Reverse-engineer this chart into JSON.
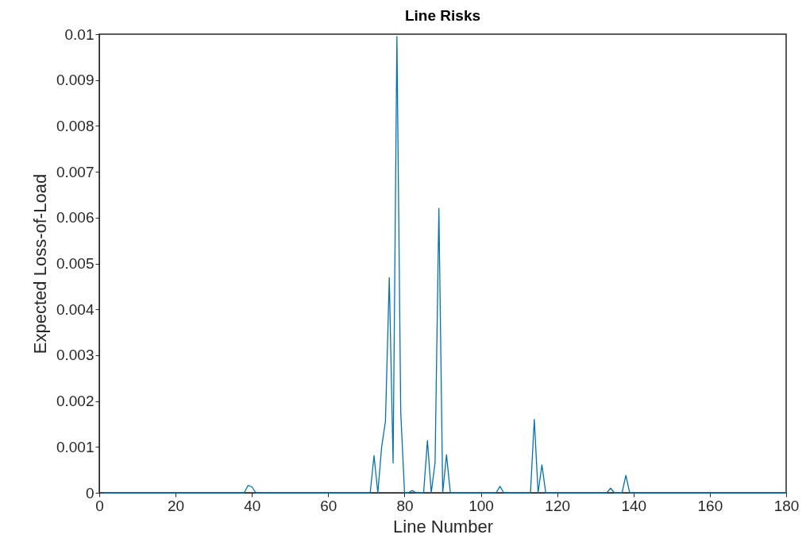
{
  "chart_data": {
    "type": "line",
    "title": "Line Risks",
    "xlabel": "Line Number",
    "ylabel": "Expected Loss-of-Load",
    "x": [
      1,
      38,
      39,
      40,
      41,
      58,
      59,
      60,
      71,
      72,
      73,
      74,
      75,
      76,
      77,
      78,
      79,
      80,
      81,
      82,
      83,
      85,
      86,
      87,
      88,
      89,
      90,
      91,
      92,
      104,
      105,
      106,
      107,
      113,
      114,
      115,
      116,
      117,
      118,
      119,
      120,
      133,
      134,
      135,
      137,
      138,
      139,
      180
    ],
    "series": [
      {
        "color": "#0072bd",
        "values": [
          0,
          0,
          0.00016,
          0.00013,
          0,
          0,
          0,
          0,
          0,
          0.00081,
          0,
          0.001,
          0.00156,
          0.00469,
          0.00065,
          0.00995,
          0.00176,
          0,
          0,
          5e-05,
          0,
          0,
          0.00114,
          0,
          0.00066,
          0.0062,
          0,
          0.00083,
          0,
          0,
          0.00014,
          0,
          0,
          0,
          0.0016,
          0,
          0.00061,
          0,
          0,
          0,
          0,
          0,
          0.0001,
          0,
          0,
          0.00038,
          0,
          0
        ]
      }
    ],
    "xlim": [
      0,
      180
    ],
    "xticks": [
      0,
      20,
      40,
      60,
      80,
      100,
      120,
      140,
      160,
      180
    ],
    "ylim": [
      0,
      0.01
    ],
    "yticks": [
      0,
      0.001,
      0.002,
      0.003,
      0.004,
      0.005,
      0.006,
      0.007,
      0.008,
      0.009,
      0.01
    ],
    "grid": false,
    "legend": false,
    "line_style": "solid",
    "marker": "none"
  }
}
